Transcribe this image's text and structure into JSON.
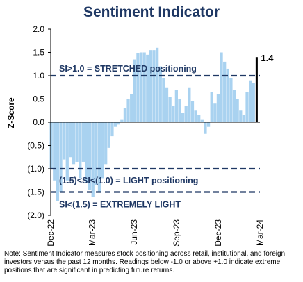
{
  "chart_data": {
    "type": "bar",
    "title": "Sentiment Indicator",
    "ylabel": "Z-Score",
    "ylim": [
      -2.0,
      2.0
    ],
    "y_ticks": [
      2.0,
      1.5,
      1.0,
      0.5,
      0.0,
      -0.5,
      -1.0,
      -1.5,
      -2.0
    ],
    "y_tick_labels": [
      "2.0",
      "1.5",
      "1.0",
      "0.5",
      "0.0",
      "(0.5)",
      "(1.0)",
      "(1.5)",
      "(2.0)"
    ],
    "x_tick_labels": [
      "Dec-22",
      "Mar-23",
      "Jun-23",
      "Sep-23",
      "Dec-23",
      "Mar-24"
    ],
    "x_tick_dates": [
      "2022-12-01",
      "2023-03-01",
      "2023-06-01",
      "2023-09-01",
      "2023-12-01",
      "2024-03-01"
    ],
    "bar_color": "#a9d2f0",
    "latest_bar_color": "#000000",
    "reference_line_color": "#1f3864",
    "series": [
      {
        "dates": [
          "2022-12-02",
          "2022-12-09",
          "2022-12-16",
          "2022-12-23",
          "2022-12-30",
          "2023-01-06",
          "2023-01-13",
          "2023-01-20",
          "2023-01-27",
          "2023-02-03",
          "2023-02-10",
          "2023-02-17",
          "2023-02-24",
          "2023-03-03",
          "2023-03-10",
          "2023-03-17",
          "2023-03-24",
          "2023-03-31",
          "2023-04-07",
          "2023-04-14",
          "2023-04-21",
          "2023-04-28",
          "2023-05-05",
          "2023-05-12",
          "2023-05-19",
          "2023-05-26",
          "2023-06-02",
          "2023-06-09",
          "2023-06-16",
          "2023-06-23",
          "2023-06-30",
          "2023-07-07",
          "2023-07-14",
          "2023-07-21",
          "2023-07-28",
          "2023-08-04",
          "2023-08-11",
          "2023-08-18",
          "2023-08-25",
          "2023-09-01",
          "2023-09-08",
          "2023-09-15",
          "2023-09-22",
          "2023-09-29",
          "2023-10-06",
          "2023-10-13",
          "2023-10-20",
          "2023-10-27",
          "2023-11-03",
          "2023-11-10",
          "2023-11-17",
          "2023-11-24",
          "2023-12-01",
          "2023-12-08",
          "2023-12-15",
          "2023-12-22",
          "2023-12-29",
          "2024-01-05",
          "2024-01-12",
          "2024-01-19",
          "2024-01-26",
          "2024-02-02",
          "2024-02-09",
          "2024-02-16"
        ],
        "values": [
          -1.0,
          -1.25,
          -1.7,
          -1.5,
          -0.8,
          -1.25,
          -0.75,
          -0.9,
          -0.85,
          -1.2,
          -0.85,
          -1.3,
          -1.45,
          -1.6,
          -1.35,
          -1.5,
          -1.2,
          -0.9,
          -0.55,
          -0.3,
          -0.1,
          -0.05,
          0.05,
          0.3,
          0.5,
          0.6,
          1.35,
          1.48,
          1.5,
          1.5,
          1.45,
          1.55,
          1.55,
          1.6,
          1.2,
          0.95,
          0.75,
          0.55,
          0.35,
          0.7,
          0.5,
          0.2,
          0.35,
          0.75,
          0.45,
          0.25,
          0.15,
          0.05,
          -0.25,
          -0.1,
          0.65,
          0.4,
          0.6,
          1.5,
          1.3,
          1.15,
          0.95,
          0.7,
          0.5,
          0.25,
          0.15,
          0.65,
          0.9,
          0.85
        ]
      }
    ],
    "latest": {
      "date": "2024-02-23",
      "value": 1.4,
      "label": "1.4"
    },
    "reference_lines": [
      {
        "value": 1.0,
        "label": "SI>1.0 = STRETCHED positioning",
        "label_value": 1.15
      },
      {
        "value": -1.0,
        "label": "(1.5)<SI<(1.0) = LIGHT positioning",
        "label_value": -1.25
      },
      {
        "value": -1.5,
        "label": "SI<(1.5) = EXTREMELY LIGHT",
        "label_value": -1.77
      }
    ]
  },
  "footnote": "Note: Sentiment Indicator measures stock positioning across retail, institutional, and foreign investors versus the past 12 months. Readings below -1.0 or above +1.0 indicate extreme positions that are significant in predicting future returns."
}
